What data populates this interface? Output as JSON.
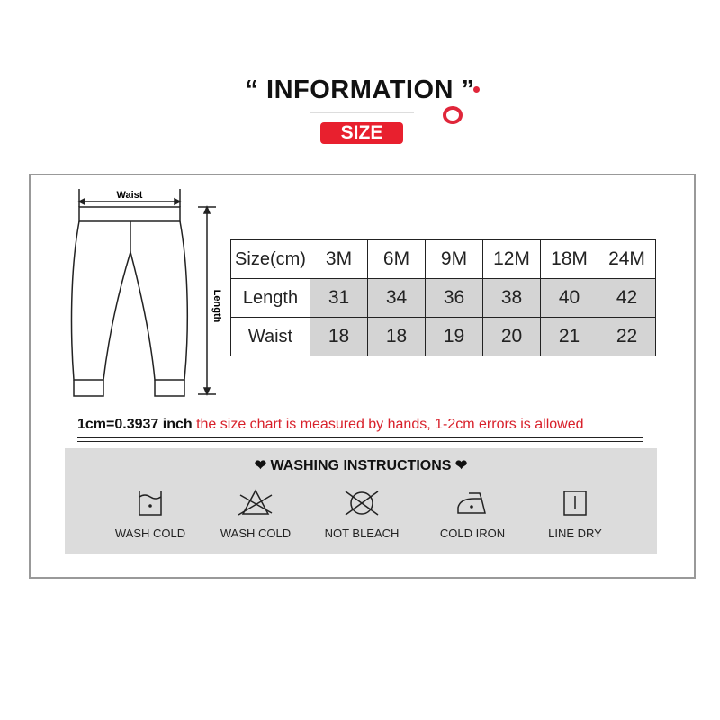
{
  "header": {
    "title": "“ INFORMATION ”",
    "badge": "SIZE"
  },
  "diagram": {
    "waist_label": "Waist",
    "length_label": "Length"
  },
  "size_table": {
    "headers": [
      "Size(cm)",
      "3M",
      "6M",
      "9M",
      "12M",
      "18M",
      "24M"
    ],
    "rows": [
      {
        "label": "Length",
        "values": [
          "31",
          "34",
          "36",
          "38",
          "40",
          "42"
        ]
      },
      {
        "label": "Waist",
        "values": [
          "18",
          "18",
          "19",
          "20",
          "21",
          "22"
        ]
      }
    ]
  },
  "note": {
    "conversion": "1cm=0.3937 inch",
    "disclaimer": " the size chart is measured by hands, 1-2cm errors is allowed"
  },
  "washing": {
    "title": "❤  WASHING INSTRUCTIONS  ❤",
    "items": [
      {
        "icon": "wash-cold-icon",
        "label": "WASH COLD"
      },
      {
        "icon": "no-bleach-triangle-icon",
        "label": "WASH COLD"
      },
      {
        "icon": "no-tumble-dry-icon",
        "label": "NOT BLEACH"
      },
      {
        "icon": "iron-low-icon",
        "label": "COLD IRON"
      },
      {
        "icon": "line-dry-icon",
        "label": "LINE DRY"
      }
    ]
  },
  "colors": {
    "accent": "#e8202e",
    "table_fill": "#d4d4d4",
    "panel": "#dcdcdc"
  }
}
